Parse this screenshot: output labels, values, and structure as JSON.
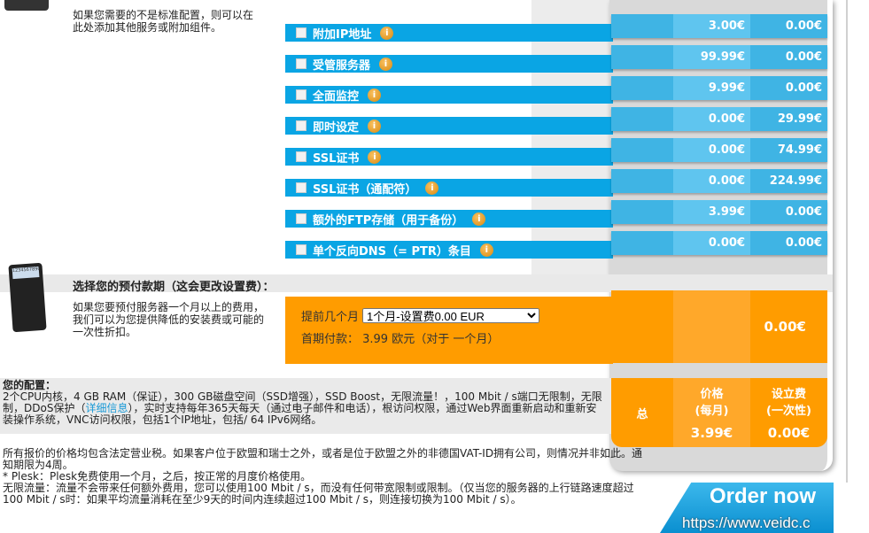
{
  "addons": {
    "description": "如果您需要的不是标准配置，则可以在此处添加其他服务或附加组件。",
    "items": [
      {
        "label": "附加IP地址",
        "price": "3.00€",
        "setup": "0.00€"
      },
      {
        "label": "受管服务器",
        "price": "99.99€",
        "setup": "0.00€"
      },
      {
        "label": "全面监控",
        "price": "9.99€",
        "setup": "0.00€"
      },
      {
        "label": "即时设定",
        "price": "0.00€",
        "setup": "29.99€"
      },
      {
        "label": "SSL证书",
        "price": "0.00€",
        "setup": "74.99€"
      },
      {
        "label": "SSL证书（通配符）",
        "price": "0.00€",
        "setup": "224.99€"
      },
      {
        "label": "额外的FTP存储（用于备份）",
        "price": "3.99€",
        "setup": "0.00€"
      },
      {
        "label": "单个反向DNS（= PTR）条目",
        "price": "0.00€",
        "setup": "0.00€"
      }
    ]
  },
  "prepay": {
    "title": "选择您的预付款期（这会更改设置费）：",
    "description": "如果您要预付服务器一个月以上的费用，我们可以为您提供降低的安装费或可能的一次性折扣。",
    "months_label": "提前几个月",
    "selected": "1个月-设置费0.00 EUR",
    "first_payment": "首期付款： 3.99 欧元（对于 一个月）",
    "setup_total": "0.00€",
    "calculator_display": "1234567890"
  },
  "config": {
    "title": "您的配置：",
    "text_before": "2个CPU内核，4 GB RAM（保证），300 GB磁盘空间（SSD增强），SSD Boost，无限流量！，100 Mbit / s端口无限制，无限制，DDoS保护（",
    "link": "详细信息",
    "text_after": "），实时支持每年365天每天（通过电子邮件和电话），根访问权限，通过Web界面重新启动和重新安装操作系统，VNC访问权限，包括1个IP地址，包括/ 64 IPv6网络。"
  },
  "summary": {
    "total_label": "总",
    "price_label": "价格",
    "price_sub": "(每月)",
    "setup_label": "设立费",
    "setup_sub": "(一次性)",
    "price": "3.99€",
    "setup": "0.00€"
  },
  "notes": [
    "所有报价的价格均包含法定营业税。如果客户位于欧盟和瑞士之外，或者是位于欧盟之外的非德国VAT-ID拥有公司，则情况并非如此。通知期限为4周。",
    "* Plesk：Plesk免费使用一个月，之后，按正常的月度价格使用。",
    "无限流量：流量不会带来任何额外费用，您可以使用100 Mbit / s，而没有任何带宽限制或限制。（仅当您的服务器的上行链路速度超过100 Mbit / s时：如果平均流量消耗在至少9天的时间内连续超过100 Mbit / s，则连接切换为100 Mbit / s）。"
  ],
  "order_button": "Order now",
  "watermark": "https://www.veidc.c",
  "colors": {
    "blue": "#0aa5e4",
    "orange": "#ff9c00"
  }
}
